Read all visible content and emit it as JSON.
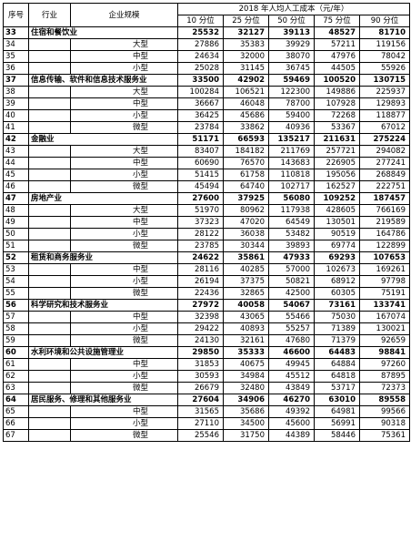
{
  "header": {
    "col_seq": "序号",
    "col_industry": "行业",
    "col_size": "企业规模",
    "group_title": "2018 年人均人工成本（元/年）",
    "percentiles": [
      "10 分位",
      "25 分位",
      "50 分位",
      "75 分位",
      "90 分位"
    ]
  },
  "rows": [
    {
      "seq": "33",
      "name": "住宿和餐饮业",
      "size": "",
      "v": [
        "25532",
        "32127",
        "39113",
        "48527",
        "81710"
      ],
      "bold": true
    },
    {
      "seq": "34",
      "name": "",
      "size": "大型",
      "v": [
        "27886",
        "35383",
        "39929",
        "57211",
        "119156"
      ]
    },
    {
      "seq": "35",
      "name": "",
      "size": "中型",
      "v": [
        "24634",
        "32000",
        "38070",
        "47976",
        "78042"
      ]
    },
    {
      "seq": "36",
      "name": "",
      "size": "小型",
      "v": [
        "25028",
        "31145",
        "36745",
        "44505",
        "55926"
      ]
    },
    {
      "seq": "37",
      "name": "信息传输、软件和信息技术服务业",
      "size": "",
      "v": [
        "33500",
        "42902",
        "59469",
        "100520",
        "130715"
      ],
      "bold": true
    },
    {
      "seq": "38",
      "name": "",
      "size": "大型",
      "v": [
        "100284",
        "106521",
        "122300",
        "149886",
        "225937"
      ]
    },
    {
      "seq": "39",
      "name": "",
      "size": "中型",
      "v": [
        "36667",
        "46048",
        "78700",
        "107928",
        "129893"
      ]
    },
    {
      "seq": "40",
      "name": "",
      "size": "小型",
      "v": [
        "36425",
        "45686",
        "59400",
        "72268",
        "118877"
      ]
    },
    {
      "seq": "41",
      "name": "",
      "size": "微型",
      "v": [
        "23784",
        "33862",
        "40936",
        "53367",
        "67012"
      ]
    },
    {
      "seq": "42",
      "name": "金融业",
      "size": "",
      "v": [
        "51171",
        "66593",
        "135217",
        "211631",
        "275224"
      ],
      "bold": true
    },
    {
      "seq": "43",
      "name": "",
      "size": "大型",
      "v": [
        "83407",
        "184182",
        "211769",
        "257721",
        "294082"
      ]
    },
    {
      "seq": "44",
      "name": "",
      "size": "中型",
      "v": [
        "60690",
        "76570",
        "143683",
        "226905",
        "277241"
      ]
    },
    {
      "seq": "45",
      "name": "",
      "size": "小型",
      "v": [
        "51415",
        "61758",
        "110818",
        "195056",
        "268849"
      ]
    },
    {
      "seq": "46",
      "name": "",
      "size": "微型",
      "v": [
        "45494",
        "64740",
        "102717",
        "162527",
        "222751"
      ]
    },
    {
      "seq": "47",
      "name": "房地产业",
      "size": "",
      "v": [
        "27600",
        "37925",
        "56080",
        "109252",
        "187457"
      ],
      "bold": true
    },
    {
      "seq": "48",
      "name": "",
      "size": "大型",
      "v": [
        "51970",
        "80962",
        "117938",
        "428605",
        "766169"
      ]
    },
    {
      "seq": "49",
      "name": "",
      "size": "中型",
      "v": [
        "37323",
        "47020",
        "64549",
        "130501",
        "219589"
      ]
    },
    {
      "seq": "50",
      "name": "",
      "size": "小型",
      "v": [
        "28122",
        "36038",
        "53482",
        "90519",
        "164786"
      ]
    },
    {
      "seq": "51",
      "name": "",
      "size": "微型",
      "v": [
        "23785",
        "30344",
        "39893",
        "69774",
        "122899"
      ]
    },
    {
      "seq": "52",
      "name": "租赁和商务服务业",
      "size": "",
      "v": [
        "24622",
        "35861",
        "47933",
        "69293",
        "107653"
      ],
      "bold": true
    },
    {
      "seq": "53",
      "name": "",
      "size": "中型",
      "v": [
        "28116",
        "40285",
        "57000",
        "102673",
        "169261"
      ]
    },
    {
      "seq": "54",
      "name": "",
      "size": "小型",
      "v": [
        "26194",
        "37375",
        "50821",
        "68912",
        "97798"
      ]
    },
    {
      "seq": "55",
      "name": "",
      "size": "微型",
      "v": [
        "22436",
        "32865",
        "42500",
        "60305",
        "75191"
      ]
    },
    {
      "seq": "56",
      "name": "科学研究和技术服务业",
      "size": "",
      "v": [
        "27972",
        "40058",
        "54067",
        "73161",
        "133741"
      ],
      "bold": true
    },
    {
      "seq": "57",
      "name": "",
      "size": "中型",
      "v": [
        "32398",
        "43065",
        "55466",
        "75030",
        "167074"
      ]
    },
    {
      "seq": "58",
      "name": "",
      "size": "小型",
      "v": [
        "29422",
        "40893",
        "55257",
        "71389",
        "130021"
      ]
    },
    {
      "seq": "59",
      "name": "",
      "size": "微型",
      "v": [
        "24130",
        "32161",
        "47680",
        "71379",
        "92659"
      ]
    },
    {
      "seq": "60",
      "name": "水利环境和公共设施管理业",
      "size": "",
      "v": [
        "29850",
        "35333",
        "46600",
        "64483",
        "98841"
      ],
      "bold": true
    },
    {
      "seq": "61",
      "name": "",
      "size": "中型",
      "v": [
        "31853",
        "40675",
        "49945",
        "64884",
        "97260"
      ]
    },
    {
      "seq": "62",
      "name": "",
      "size": "小型",
      "v": [
        "30593",
        "34984",
        "45512",
        "64818",
        "87895"
      ]
    },
    {
      "seq": "63",
      "name": "",
      "size": "微型",
      "v": [
        "26679",
        "32480",
        "43849",
        "53717",
        "72373"
      ]
    },
    {
      "seq": "64",
      "name": "居民服务、修理和其他服务业",
      "size": "",
      "v": [
        "27604",
        "34906",
        "46270",
        "63010",
        "89558"
      ],
      "bold": true
    },
    {
      "seq": "65",
      "name": "",
      "size": "中型",
      "v": [
        "31565",
        "35686",
        "49392",
        "64981",
        "99566"
      ]
    },
    {
      "seq": "66",
      "name": "",
      "size": "小型",
      "v": [
        "27110",
        "34500",
        "45600",
        "56991",
        "90318"
      ]
    },
    {
      "seq": "67",
      "name": "",
      "size": "微型",
      "v": [
        "25546",
        "31750",
        "44389",
        "58446",
        "75361"
      ]
    }
  ]
}
